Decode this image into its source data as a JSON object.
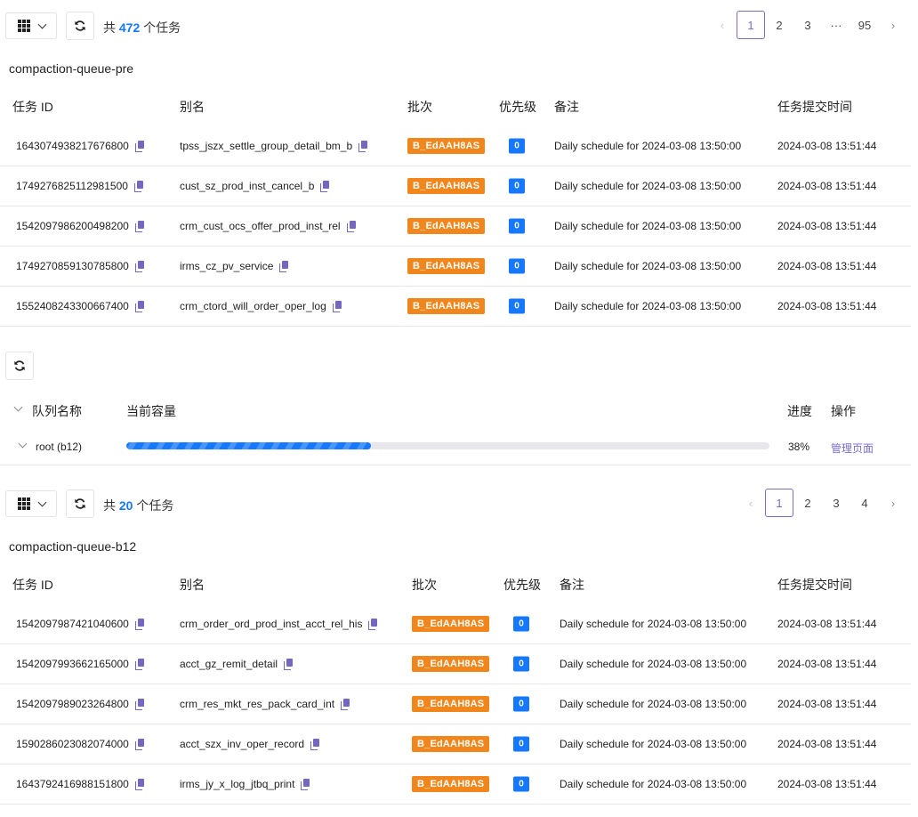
{
  "section1": {
    "count_prefix": "共",
    "count": "472",
    "count_suffix": "个任务",
    "queue_name": "compaction-queue-pre",
    "pages": [
      "1",
      "2",
      "3",
      "···",
      "95"
    ],
    "active_page": "1",
    "headers": {
      "id": "任务 ID",
      "alias": "别名",
      "batch": "批次",
      "priority": "优先级",
      "note": "备注",
      "time": "任务提交时间"
    },
    "rows": [
      {
        "id": "1643074938217676800",
        "alias": "tpss_jszx_settle_group_detail_bm_b",
        "batch": "B_EdAAH8AS",
        "priority": "0",
        "note": "Daily schedule for 2024-03-08 13:50:00",
        "time": "2024-03-08 13:51:44"
      },
      {
        "id": "1749276825112981500",
        "alias": "cust_sz_prod_inst_cancel_b",
        "batch": "B_EdAAH8AS",
        "priority": "0",
        "note": "Daily schedule for 2024-03-08 13:50:00",
        "time": "2024-03-08 13:51:44"
      },
      {
        "id": "1542097986200498200",
        "alias": "crm_cust_ocs_offer_prod_inst_rel",
        "batch": "B_EdAAH8AS",
        "priority": "0",
        "note": "Daily schedule for 2024-03-08 13:50:00",
        "time": "2024-03-08 13:51:44"
      },
      {
        "id": "1749270859130785800",
        "alias": "irms_cz_pv_service",
        "batch": "B_EdAAH8AS",
        "priority": "0",
        "note": "Daily schedule for 2024-03-08 13:50:00",
        "time": "2024-03-08 13:51:44"
      },
      {
        "id": "1552408243300667400",
        "alias": "crm_ctord_will_order_oper_log",
        "batch": "B_EdAAH8AS",
        "priority": "0",
        "note": "Daily schedule for 2024-03-08 13:50:00",
        "time": "2024-03-08 13:51:44"
      }
    ]
  },
  "queue": {
    "headers": {
      "name": "队列名称",
      "capacity": "当前容量",
      "progress": "进度",
      "action": "操作"
    },
    "row": {
      "name": "root (b12)",
      "progress_percent": 38,
      "progress_label": "38%",
      "action": "管理页面"
    }
  },
  "section2": {
    "count_prefix": "共",
    "count": "20",
    "count_suffix": "个任务",
    "queue_name": "compaction-queue-b12",
    "pages": [
      "1",
      "2",
      "3",
      "4"
    ],
    "active_page": "1",
    "headers": {
      "id": "任务 ID",
      "alias": "别名",
      "batch": "批次",
      "priority": "优先级",
      "note": "备注",
      "time": "任务提交时间"
    },
    "rows": [
      {
        "id": "1542097987421040600",
        "alias": "crm_order_ord_prod_inst_acct_rel_his",
        "batch": "B_EdAAH8AS",
        "priority": "0",
        "note": "Daily schedule for 2024-03-08 13:50:00",
        "time": "2024-03-08 13:51:44"
      },
      {
        "id": "1542097993662165000",
        "alias": "acct_gz_remit_detail",
        "batch": "B_EdAAH8AS",
        "priority": "0",
        "note": "Daily schedule for 2024-03-08 13:50:00",
        "time": "2024-03-08 13:51:44"
      },
      {
        "id": "1542097989023264800",
        "alias": "crm_res_mkt_res_pack_card_int",
        "batch": "B_EdAAH8AS",
        "priority": "0",
        "note": "Daily schedule for 2024-03-08 13:50:00",
        "time": "2024-03-08 13:51:44"
      },
      {
        "id": "1590286023082074000",
        "alias": "acct_szx_inv_oper_record",
        "batch": "B_EdAAH8AS",
        "priority": "0",
        "note": "Daily schedule for 2024-03-08 13:50:00",
        "time": "2024-03-08 13:51:44"
      },
      {
        "id": "1643792416988151800",
        "alias": "irms_jy_x_log_jtbq_print",
        "batch": "B_EdAAH8AS",
        "priority": "0",
        "note": "Daily schedule for 2024-03-08 13:50:00",
        "time": "2024-03-08 13:51:44"
      }
    ]
  },
  "colors": {
    "accent": "#1677ff",
    "batch": "#f0861c",
    "link": "#7b6cc8"
  },
  "icons": [
    "grid-icon",
    "chevron-down-icon",
    "refresh-icon",
    "copy-icon",
    "chevron-left-icon",
    "chevron-right-icon"
  ]
}
